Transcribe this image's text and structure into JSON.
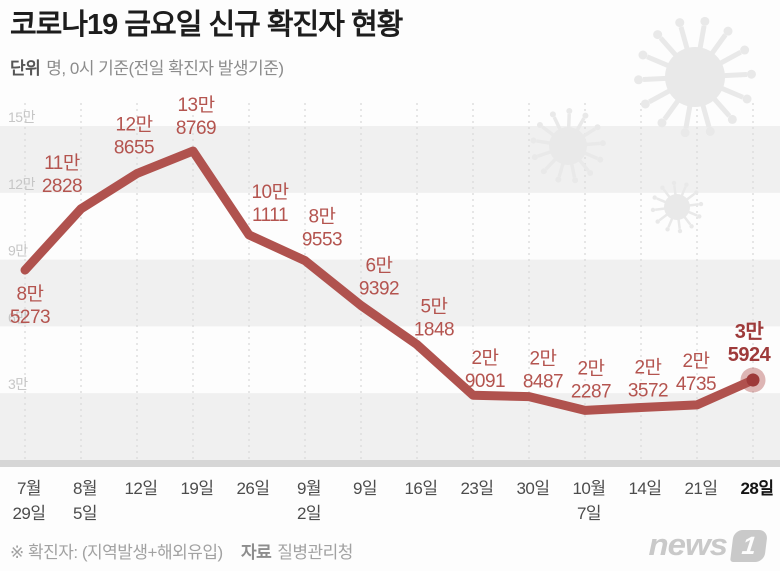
{
  "header": {
    "title": "코로나19 금요일 신규 확진자 현황",
    "unit_label": "단위",
    "unit_desc": "명, 0시 기준(전일 확진자 발생기준)"
  },
  "chart_data": {
    "type": "line",
    "title": "코로나19 금요일 신규 확진자 현황",
    "unit": "명",
    "ylim": [
      0,
      160000
    ],
    "grid": "horizontal-bands-and-dashed-vertical",
    "legend": "none",
    "y_ticks": [
      {
        "label": "15만",
        "value": 150000
      },
      {
        "label": "12만",
        "value": 120000
      },
      {
        "label": "9만",
        "value": 90000
      },
      {
        "label": "6만",
        "value": 60000
      },
      {
        "label": "3만",
        "value": 30000
      }
    ],
    "gray_bands": [
      [
        120000,
        150000
      ],
      [
        60000,
        90000
      ],
      [
        0,
        30000
      ]
    ],
    "points": [
      {
        "date_label": [
          "7월",
          "29일"
        ],
        "value": 85273,
        "value_label": [
          "8만",
          "5273"
        ],
        "label_offset": [
          5,
          24
        ],
        "emphasized": false
      },
      {
        "date_label": [
          "8월",
          "5일"
        ],
        "value": 112828,
        "value_label": [
          "11만",
          "2828"
        ],
        "label_offset": [
          -19,
          -46
        ],
        "emphasized": false
      },
      {
        "date_label": [
          "12일"
        ],
        "value": 128655,
        "value_label": [
          "12만",
          "8655"
        ],
        "label_offset": [
          -3,
          -49
        ],
        "emphasized": false
      },
      {
        "date_label": [
          "19일"
        ],
        "value": 138769,
        "value_label": [
          "13만",
          "8769"
        ],
        "label_offset": [
          3,
          -46
        ],
        "emphasized": false
      },
      {
        "date_label": [
          "26일"
        ],
        "value": 101111,
        "value_label": [
          "10만",
          "1111"
        ],
        "label_offset": [
          21,
          -43
        ],
        "emphasized": false
      },
      {
        "date_label": [
          "9월",
          "2일"
        ],
        "value": 89553,
        "value_label": [
          "8만",
          "9553"
        ],
        "label_offset": [
          17,
          -44
        ],
        "emphasized": false
      },
      {
        "date_label": [
          "9일"
        ],
        "value": 69392,
        "value_label": [
          "6만",
          "9392"
        ],
        "label_offset": [
          18,
          -40
        ],
        "emphasized": false
      },
      {
        "date_label": [
          "16일"
        ],
        "value": 51848,
        "value_label": [
          "5만",
          "1848"
        ],
        "label_offset": [
          17,
          -38
        ],
        "emphasized": false
      },
      {
        "date_label": [
          "23일"
        ],
        "value": 29091,
        "value_label": [
          "2만",
          "9091"
        ],
        "label_offset": [
          12,
          -37
        ],
        "emphasized": false
      },
      {
        "date_label": [
          "30일"
        ],
        "value": 28487,
        "value_label": [
          "2만",
          "8487"
        ],
        "label_offset": [
          14,
          -38
        ],
        "emphasized": false
      },
      {
        "date_label": [
          "10월",
          "7일"
        ],
        "value": 22287,
        "value_label": [
          "2만",
          "2287"
        ],
        "label_offset": [
          6,
          -42
        ],
        "emphasized": false
      },
      {
        "date_label": [
          "14일"
        ],
        "value": 23572,
        "value_label": [
          "2만",
          "3572"
        ],
        "label_offset": [
          7,
          -40
        ],
        "emphasized": false
      },
      {
        "date_label": [
          "21일"
        ],
        "value": 24735,
        "value_label": [
          "2만",
          "4735"
        ],
        "label_offset": [
          -1,
          -44
        ],
        "emphasized": false
      },
      {
        "date_label": [
          "28일"
        ],
        "value": 35924,
        "value_label": [
          "3만",
          "5924"
        ],
        "label_offset": [
          -4,
          -48
        ],
        "emphasized": true
      }
    ],
    "colors": {
      "line": "#b0524e",
      "value_label": "#b4544f",
      "emphasis": "#9e3a3a",
      "band": "#f0f0f0",
      "axis_bar": "#d6d6d6",
      "dash_line": "#dedede",
      "y_tick": "#c6c6c6",
      "x_tick": "#4c4c4c",
      "x_tick_emphasis": "#141414",
      "virus_decor": "#e9e9e9"
    }
  },
  "footer": {
    "note": "※ 확진자: (지역발생+해외유입)",
    "source_label": "자료",
    "source": "질병관리청"
  },
  "logo": {
    "text": "news",
    "badge": "1"
  }
}
